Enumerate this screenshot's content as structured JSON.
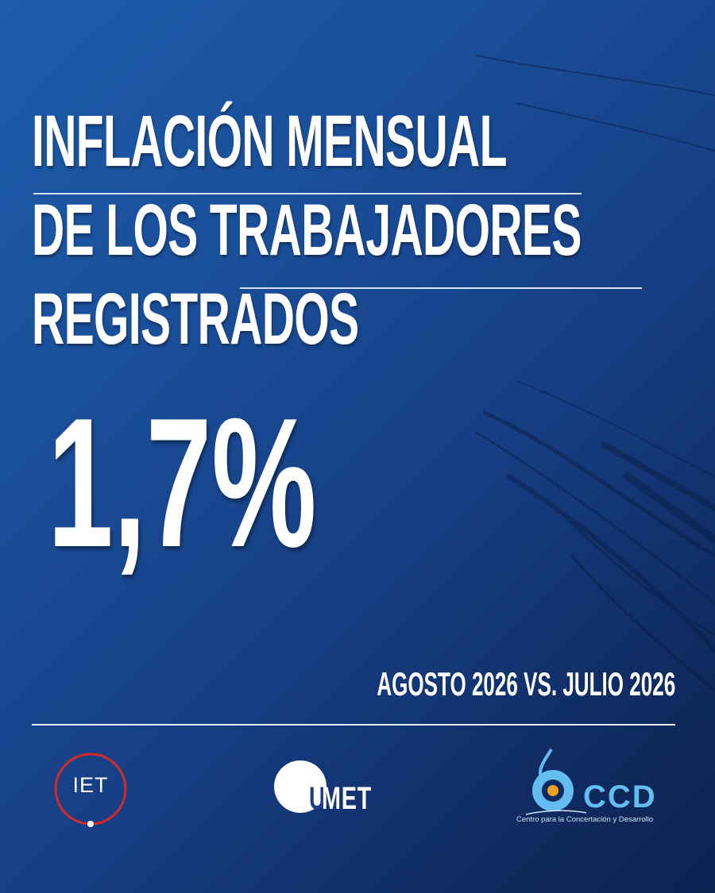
{
  "headline": {
    "line1": "INFLACIÓN MENSUAL",
    "line2": "DE LOS TRABAJADORES",
    "line3": "REGISTRADOS"
  },
  "value": "1,7%",
  "period": "AGOSTO 2026 VS. JULIO 2026",
  "logos": {
    "iet": "IET",
    "umet_letter": "U",
    "umet_text": "MET",
    "ccd": "CCD",
    "ccd_subtitle": "Centro para la Concertación y Desarrollo"
  },
  "colors": {
    "background": "#1a4f9a",
    "background_dark": "#0c2352",
    "iet_ring": "#d62a2a",
    "ccd_accent": "#63bdf0",
    "ccd_orange": "#f6a21e"
  }
}
